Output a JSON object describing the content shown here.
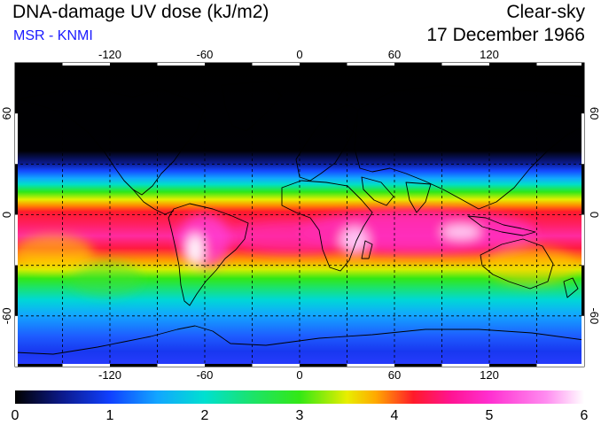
{
  "header": {
    "title": "DNA-damage UV dose (kJ/m2)",
    "credit": "MSR - KNMI",
    "condition": "Clear-sky",
    "date": "17 December 1966"
  },
  "map": {
    "lon_ticks": [
      -120,
      -60,
      0,
      60,
      120
    ],
    "lat_ticks": [
      60,
      0,
      -60
    ],
    "lon_range": [
      -180,
      180
    ],
    "lat_range": [
      -90,
      90
    ]
  },
  "colorbar": {
    "min": 0,
    "max": 6,
    "tick_labels": [
      "0",
      "1",
      "2",
      "3",
      "4",
      "5",
      "6"
    ],
    "stops": [
      {
        "v": 0.0,
        "color": "#000000"
      },
      {
        "v": 0.5,
        "color": "#0c1a8c"
      },
      {
        "v": 1.0,
        "color": "#1040ff"
      },
      {
        "v": 1.5,
        "color": "#12a6ff"
      },
      {
        "v": 2.0,
        "color": "#00e0d0"
      },
      {
        "v": 2.5,
        "color": "#1ce36a"
      },
      {
        "v": 3.0,
        "color": "#33e815"
      },
      {
        "v": 3.5,
        "color": "#e8ee00"
      },
      {
        "v": 3.8,
        "color": "#ffaa00"
      },
      {
        "v": 4.2,
        "color": "#ff1a2a"
      },
      {
        "v": 4.6,
        "color": "#ff1493"
      },
      {
        "v": 5.0,
        "color": "#ff2fd0"
      },
      {
        "v": 5.6,
        "color": "#ff8cf0"
      },
      {
        "v": 6.0,
        "color": "#ffffff"
      }
    ]
  }
}
